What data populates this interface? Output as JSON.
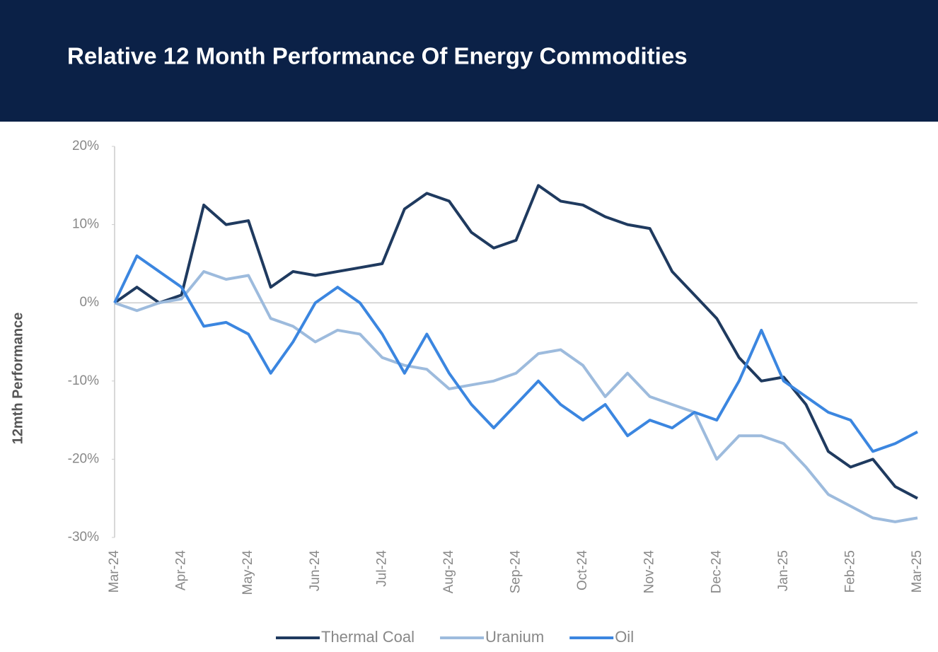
{
  "chart_data": {
    "type": "line",
    "title": "Relative 12 Month Performance Of Energy Commodities",
    "y_label": "12mth Performance",
    "categories": [
      "Mar-24",
      null,
      null,
      "Apr-24",
      null,
      null,
      "May-24",
      null,
      null,
      "Jun-24",
      null,
      null,
      "Jul-24",
      null,
      null,
      "Aug-24",
      null,
      null,
      "Sep-24",
      null,
      null,
      "Oct-24",
      null,
      null,
      "Nov-24",
      null,
      null,
      "Dec-24",
      null,
      null,
      "Jan-25",
      null,
      null,
      "Feb-25",
      null,
      null,
      "Mar-25"
    ],
    "series": [
      {
        "name": "Thermal Coal",
        "color": "#1f3a5f",
        "values": [
          0,
          2,
          0,
          1,
          12.5,
          10,
          10.5,
          2,
          4,
          3.5,
          4,
          4.5,
          5,
          12,
          14,
          13,
          9,
          7,
          8,
          15,
          13,
          12.5,
          11,
          10,
          9.5,
          4,
          1,
          -2,
          -7,
          -10,
          -9.5,
          -13,
          -19,
          -21,
          -20,
          -23.5,
          -25
        ]
      },
      {
        "name": "Uranium",
        "color": "#9dbbdd",
        "values": [
          0,
          -1,
          0,
          0.5,
          4,
          3,
          3.5,
          -2,
          -3,
          -5,
          -3.5,
          -4,
          -7,
          -8,
          -8.5,
          -11,
          -10.5,
          -10,
          -9,
          -6.5,
          -6,
          -8,
          -12,
          -9,
          -12,
          -13,
          -14,
          -20,
          -17,
          -17,
          -18,
          -21,
          -24.5,
          -26,
          -27.5,
          -28,
          -27.5
        ]
      },
      {
        "name": "Oil",
        "color": "#3b86e0",
        "values": [
          0,
          6,
          4,
          2,
          -3,
          -2.5,
          -4,
          -9,
          -5,
          0,
          2,
          0,
          -4,
          -9,
          -4,
          -9,
          -13,
          -16,
          -13,
          -10,
          -13,
          -15,
          -13,
          -17,
          -15,
          -16,
          -14,
          -15,
          -10,
          -3.5,
          -10,
          -12,
          -14,
          -15,
          -19,
          -18,
          -16.5
        ]
      }
    ],
    "ylim": [
      -30,
      20
    ],
    "yticks": [
      {
        "value": -30,
        "label": "-30%"
      },
      {
        "value": -20,
        "label": "-20%"
      },
      {
        "value": -10,
        "label": "-10%"
      },
      {
        "value": 0,
        "label": "0%"
      },
      {
        "value": 10,
        "label": "10%"
      },
      {
        "value": 20,
        "label": "20%"
      }
    ],
    "legend": "bottom"
  }
}
